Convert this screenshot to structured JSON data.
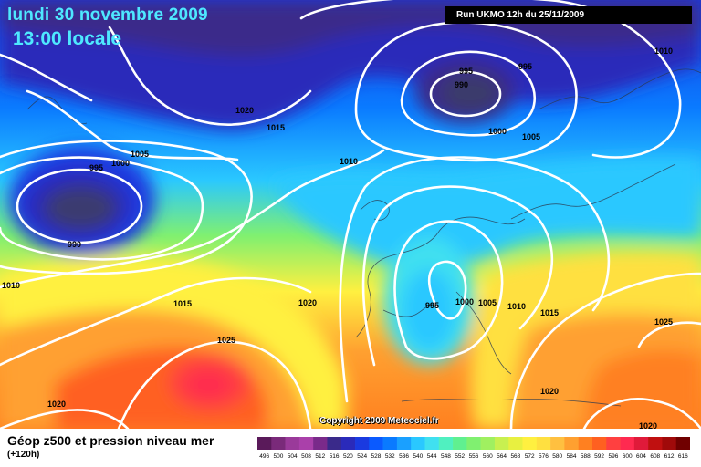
{
  "header": {
    "date": "lundi 30 novembre 2009",
    "local_time": "13:00 locale",
    "run": "Run UKMO 12h du 25/11/2009"
  },
  "copyright": "Copyright 2009 Meteociel.fr",
  "legend": {
    "title": "Géop z500 et pression niveau mer",
    "subtitle": "(+120h)",
    "scale_values": [
      "496",
      "500",
      "504",
      "508",
      "512",
      "516",
      "520",
      "524",
      "528",
      "532",
      "536",
      "540",
      "544",
      "548",
      "552",
      "556",
      "560",
      "564",
      "568",
      "572",
      "576",
      "580",
      "584",
      "588",
      "592",
      "596",
      "600",
      "604",
      "608",
      "612",
      "616"
    ],
    "scale_colors": [
      "#5a1a5a",
      "#7a2a7a",
      "#9a3a9a",
      "#aa40aa",
      "#7a2a8a",
      "#3a2a8a",
      "#2a2aba",
      "#1a3ae0",
      "#0a5aff",
      "#0a7aff",
      "#1aa0ff",
      "#2ac8ff",
      "#40e0f0",
      "#50f0c0",
      "#60f090",
      "#80f070",
      "#a0f060",
      "#c8f050",
      "#e8f040",
      "#fff040",
      "#ffe040",
      "#ffc040",
      "#ffa030",
      "#ff8020",
      "#ff6020",
      "#ff4040",
      "#ff2a50",
      "#e01a3a",
      "#c01010",
      "#a00a0a",
      "#700000"
    ]
  },
  "isobar_labels": [
    {
      "text": "995"
    },
    {
      "text": "990"
    },
    {
      "text": "995"
    },
    {
      "text": "1010"
    },
    {
      "text": "1020"
    },
    {
      "text": "1015"
    },
    {
      "text": "1000"
    },
    {
      "text": "1005"
    },
    {
      "text": "1005"
    },
    {
      "text": "995"
    },
    {
      "text": "1000"
    },
    {
      "text": "1010"
    },
    {
      "text": "990"
    },
    {
      "text": "1010"
    },
    {
      "text": "1015"
    },
    {
      "text": "1020"
    },
    {
      "text": "995"
    },
    {
      "text": "1000"
    },
    {
      "text": "1005"
    },
    {
      "text": "1010"
    },
    {
      "text": "1015"
    },
    {
      "text": "1025"
    },
    {
      "text": "1025"
    },
    {
      "text": "1020"
    },
    {
      "text": "1020"
    },
    {
      "text": "1020"
    }
  ]
}
